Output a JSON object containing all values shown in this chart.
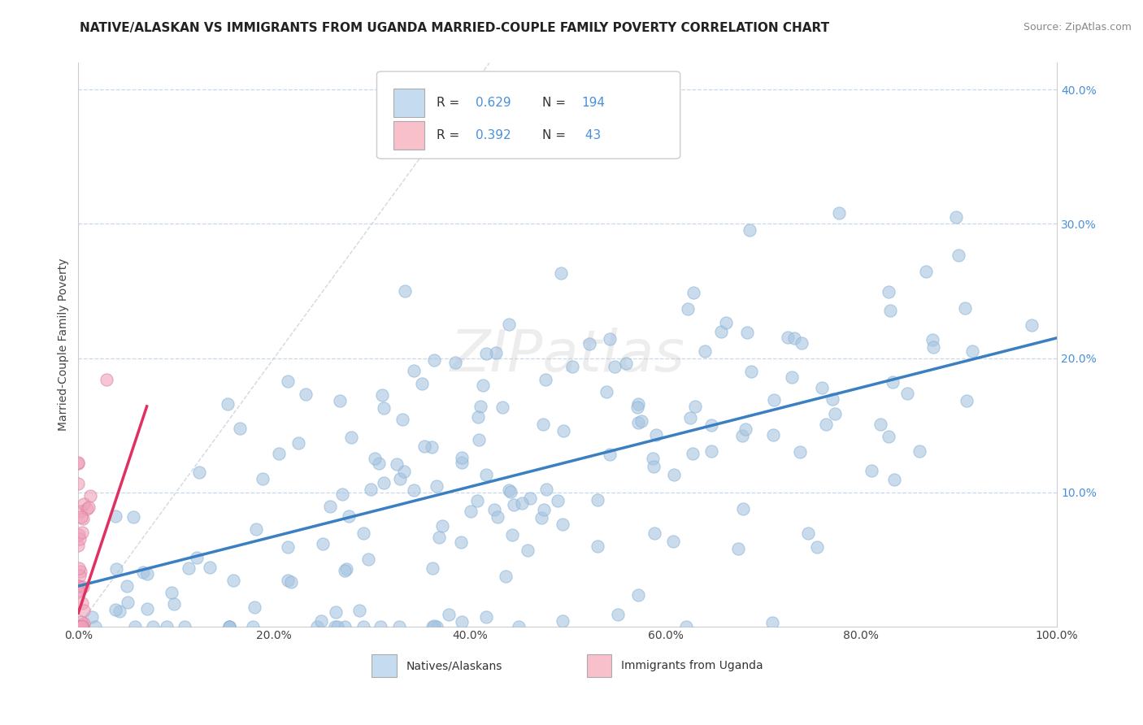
{
  "title": "NATIVE/ALASKAN VS IMMIGRANTS FROM UGANDA MARRIED-COUPLE FAMILY POVERTY CORRELATION CHART",
  "source": "Source: ZipAtlas.com",
  "ylabel": "Married-Couple Family Poverty",
  "xlim": [
    0.0,
    1.0
  ],
  "ylim": [
    0.0,
    0.42
  ],
  "xticks": [
    0.0,
    0.2,
    0.4,
    0.6,
    0.8,
    1.0
  ],
  "xtick_labels": [
    "0.0%",
    "20.0%",
    "40.0%",
    "60.0%",
    "80.0%",
    "100.0%"
  ],
  "yticks": [
    0.0,
    0.1,
    0.2,
    0.3,
    0.4
  ],
  "ytick_labels": [
    "",
    "10.0%",
    "20.0%",
    "30.0%",
    "40.0%"
  ],
  "blue_R": 0.629,
  "blue_N": 194,
  "pink_R": 0.392,
  "pink_N": 43,
  "blue_color": "#a8c4e0",
  "pink_color": "#f0a0b8",
  "blue_line_color": "#3a7fc1",
  "pink_line_color": "#e03060",
  "background_color": "#ffffff",
  "grid_color": "#c8d8e8",
  "watermark": "ZIPatlas",
  "title_fontsize": 11,
  "axis_label_fontsize": 10,
  "tick_fontsize": 10,
  "tick_color": "#4a90d9",
  "title_color": "#222222",
  "source_color": "#888888"
}
